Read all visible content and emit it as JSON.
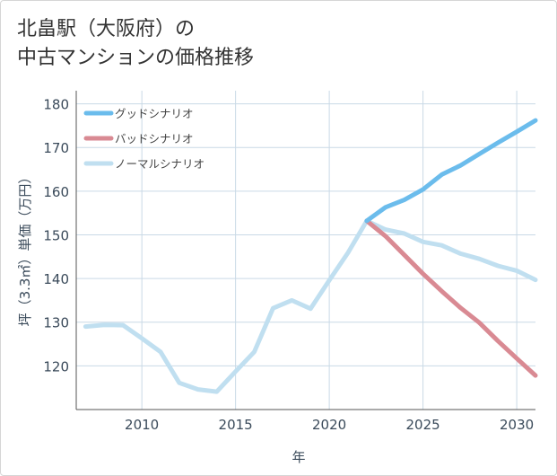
{
  "chart_data": {
    "type": "line",
    "title_line1": "北畠駅（大阪府）の",
    "title_line2": "中古マンションの価格推移",
    "xlabel": "年",
    "ylabel": "坪（3.3㎡）単価（万円）",
    "xlim": [
      2006.5,
      2031
    ],
    "ylim": [
      110,
      183
    ],
    "x_ticks": [
      "2010",
      "2015",
      "2020",
      "2025",
      "2030"
    ],
    "y_ticks": [
      "120",
      "130",
      "140",
      "150",
      "160",
      "170",
      "180"
    ],
    "legend_position": "top-left",
    "series": [
      {
        "name": "グッドシナリオ",
        "color": "#6bbcec",
        "x": [
          2022,
          2023,
          2024,
          2025,
          2026,
          2027,
          2028,
          2029,
          2030,
          2031
        ],
        "y": [
          153.2,
          156.3,
          158.0,
          160.4,
          163.8,
          165.9,
          168.5,
          171.1,
          173.6,
          176.2
        ]
      },
      {
        "name": "バッドシナリオ",
        "color": "#d98a93",
        "x": [
          2022,
          2023,
          2024,
          2025,
          2026,
          2027,
          2028,
          2029,
          2030,
          2031
        ],
        "y": [
          153.2,
          149.7,
          145.4,
          141.1,
          137.1,
          133.3,
          129.9,
          125.7,
          121.7,
          117.8
        ]
      },
      {
        "name": "ノーマルシナリオ",
        "color": "#c0dff0",
        "x": [
          2007,
          2008,
          2009,
          2010,
          2011,
          2012,
          2013,
          2014,
          2015,
          2016,
          2017,
          2018,
          2019,
          2020,
          2021,
          2022,
          2023,
          2024,
          2025,
          2026,
          2027,
          2028,
          2029,
          2030,
          2031
        ],
        "y": [
          129.0,
          129.4,
          129.3,
          126.3,
          123.2,
          116.1,
          114.6,
          114.1,
          118.7,
          123.2,
          133.2,
          135.0,
          133.1,
          139.6,
          145.9,
          153.2,
          151.2,
          150.3,
          148.4,
          147.6,
          145.7,
          144.5,
          142.9,
          141.8,
          139.7
        ]
      }
    ]
  }
}
